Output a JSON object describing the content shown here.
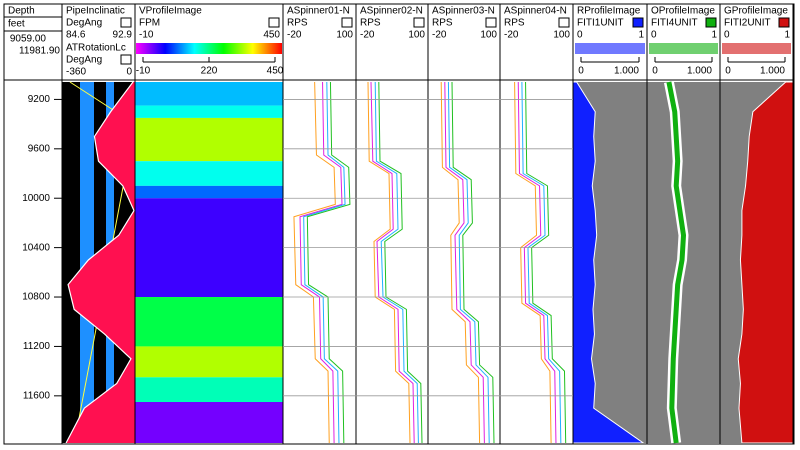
{
  "depth_track": {
    "title": "Depth",
    "unit": "feet",
    "top": {
      "value": 9059,
      "label": "9059.00"
    },
    "bottom": {
      "value": 11981.9,
      "label": "11981.90"
    },
    "ticks": [
      9200,
      9600,
      10000,
      10400,
      10800,
      11200,
      11600
    ]
  },
  "tracks": [
    {
      "kind": "pipe",
      "curves": [
        {
          "name": "PipeInclinatic",
          "unit": "DegAng",
          "min": 84.6,
          "max": 92.9,
          "color": "#ffff40",
          "depths": [
            9059,
            9400,
            11981.9
          ],
          "values": [
            85.5,
            92.9,
            86
          ]
        },
        {
          "name": "ATRotationLc",
          "unit": "DegAng",
          "min": -360,
          "max": 0,
          "color": "#ff1050",
          "depths": [
            9059,
            9300,
            9500,
            9700,
            9900,
            10100,
            10300,
            10500,
            10700,
            10900,
            11100,
            11300,
            11500,
            11700,
            11981.9
          ],
          "values": [
            -10,
            -120,
            -200,
            -180,
            -60,
            -5,
            -80,
            -230,
            -330,
            -300,
            -150,
            -20,
            -90,
            -250,
            -340
          ]
        }
      ]
    },
    {
      "kind": "heat",
      "name": "VProfileImage",
      "unit": "FPM",
      "min": -10,
      "max": 450,
      "scale": [
        -10,
        220,
        450
      ],
      "bands": [
        {
          "top": 9059,
          "bottom": 9250,
          "value": 150
        },
        {
          "top": 9250,
          "bottom": 9350,
          "value": 180
        },
        {
          "top": 9350,
          "bottom": 9700,
          "value": 330
        },
        {
          "top": 9700,
          "bottom": 9900,
          "value": 180
        },
        {
          "top": 9900,
          "bottom": 10000,
          "value": 120
        },
        {
          "top": 10000,
          "bottom": 10800,
          "value": 60
        },
        {
          "top": 10800,
          "bottom": 11200,
          "value": 240
        },
        {
          "top": 11200,
          "bottom": 11450,
          "value": 330
        },
        {
          "top": 11450,
          "bottom": 11650,
          "value": 200
        },
        {
          "top": 11650,
          "bottom": 11981.9,
          "value": 40
        }
      ]
    },
    {
      "kind": "spinner",
      "name": "ASpinner01-N",
      "unit": "RPS",
      "min": -20,
      "max": 100,
      "depths": [
        9059,
        9650,
        9750,
        10050,
        10150,
        10700,
        10800,
        11300,
        11400,
        11981.9
      ],
      "curves": [
        {
          "color": "#e020e0",
          "values": [
            45,
            47,
            75,
            77,
            8,
            10,
            40,
            42,
            62,
            64
          ]
        },
        {
          "color": "#20b0ff",
          "values": [
            52,
            54,
            80,
            82,
            14,
            16,
            46,
            48,
            70,
            72
          ]
        },
        {
          "color": "#ffa020",
          "values": [
            32,
            35,
            64,
            66,
            -2,
            1,
            30,
            33,
            54,
            56
          ]
        },
        {
          "color": "#20c020",
          "values": [
            58,
            60,
            88,
            90,
            20,
            22,
            54,
            56,
            78,
            80
          ]
        }
      ]
    },
    {
      "kind": "spinner",
      "name": "ASpinner02-N",
      "unit": "RPS",
      "min": -20,
      "max": 100,
      "depths": [
        9059,
        9700,
        9800,
        10250,
        10350,
        10800,
        10900,
        11400,
        11500,
        11981.9
      ],
      "curves": [
        {
          "color": "#e020e0",
          "values": [
            5,
            8,
            40,
            42,
            15,
            18,
            50,
            52,
            75,
            77
          ]
        },
        {
          "color": "#20b0ff",
          "values": [
            12,
            14,
            48,
            50,
            22,
            25,
            58,
            60,
            82,
            84
          ]
        },
        {
          "color": "#ffa020",
          "values": [
            0,
            2,
            35,
            37,
            10,
            12,
            44,
            46,
            68,
            70
          ]
        },
        {
          "color": "#20c020",
          "values": [
            18,
            20,
            55,
            57,
            28,
            30,
            64,
            66,
            88,
            90
          ]
        }
      ]
    },
    {
      "kind": "spinner",
      "name": "ASpinner03-N",
      "unit": "RPS",
      "min": -20,
      "max": 100,
      "depths": [
        9059,
        9750,
        9850,
        10200,
        10300,
        10900,
        11000,
        11350,
        11450,
        11981.9
      ],
      "curves": [
        {
          "color": "#e020e0",
          "values": [
            8,
            10,
            38,
            40,
            25,
            28,
            50,
            52,
            72,
            74
          ]
        },
        {
          "color": "#20b0ff",
          "values": [
            14,
            16,
            45,
            47,
            32,
            34,
            58,
            60,
            80,
            82
          ]
        },
        {
          "color": "#ffa020",
          "values": [
            2,
            4,
            30,
            32,
            18,
            20,
            42,
            44,
            64,
            66
          ]
        },
        {
          "color": "#20c020",
          "values": [
            20,
            22,
            52,
            54,
            38,
            40,
            64,
            66,
            88,
            90
          ]
        }
      ]
    },
    {
      "kind": "spinner",
      "name": "ASpinner04-N",
      "unit": "RPS",
      "min": -20,
      "max": 100,
      "depths": [
        9059,
        9800,
        9900,
        10300,
        10400,
        10850,
        10950,
        11300,
        11400,
        11981.9
      ],
      "curves": [
        {
          "color": "#e020e0",
          "values": [
            10,
            12,
            45,
            47,
            20,
            22,
            52,
            54,
            70,
            72
          ]
        },
        {
          "color": "#20b0ff",
          "values": [
            16,
            18,
            52,
            54,
            26,
            28,
            58,
            60,
            78,
            80
          ]
        },
        {
          "color": "#ffa020",
          "values": [
            4,
            6,
            38,
            40,
            14,
            16,
            46,
            48,
            62,
            64
          ]
        },
        {
          "color": "#20c020",
          "values": [
            22,
            24,
            58,
            60,
            32,
            34,
            64,
            66,
            86,
            88
          ]
        }
      ]
    },
    {
      "kind": "profile",
      "name": "RProfileImage",
      "unit": "FITI1UNIT",
      "min": 0,
      "max": 1,
      "scale": [
        0,
        {
          "value": 1,
          "label": "1.000"
        }
      ],
      "color": "#1020ff",
      "fill": "left",
      "depths": [
        9059,
        9300,
        9500,
        9700,
        9900,
        10100,
        10300,
        10500,
        10700,
        10900,
        11100,
        11300,
        11500,
        11700,
        11981.9
      ],
      "values": [
        0.05,
        0.3,
        0.28,
        0.3,
        0.26,
        0.3,
        0.32,
        0.28,
        0.3,
        0.27,
        0.29,
        0.25,
        0.3,
        0.28,
        0.95
      ]
    },
    {
      "kind": "profile",
      "name": "OProfileImage",
      "unit": "FITI4UNIT",
      "min": 0,
      "max": 1,
      "scale": [
        0,
        {
          "value": 1,
          "label": "1.000"
        }
      ],
      "color": "#10b010",
      "fill": "band",
      "depths": [
        9059,
        9300,
        9500,
        9700,
        9900,
        10100,
        10300,
        10500,
        10700,
        10900,
        11100,
        11300,
        11500,
        11700,
        11981.9
      ],
      "values": [
        0.3,
        0.38,
        0.4,
        0.42,
        0.4,
        0.45,
        0.5,
        0.48,
        0.42,
        0.4,
        0.38,
        0.36,
        0.35,
        0.34,
        0.4
      ]
    },
    {
      "kind": "profile",
      "name": "GProfileImage",
      "unit": "FITI2UNIT",
      "min": 0,
      "max": 1,
      "scale": [
        0,
        {
          "value": 1,
          "label": "1.000"
        }
      ],
      "color": "#d01010",
      "fill": "right",
      "depths": [
        9059,
        9300,
        9500,
        9700,
        9900,
        10100,
        10300,
        10500,
        10700,
        10900,
        11100,
        11300,
        11500,
        11700,
        11981.9
      ],
      "values": [
        0.9,
        0.45,
        0.4,
        0.38,
        0.35,
        0.3,
        0.3,
        0.28,
        0.3,
        0.32,
        0.3,
        0.25,
        0.28,
        0.26,
        0.3
      ]
    }
  ]
}
